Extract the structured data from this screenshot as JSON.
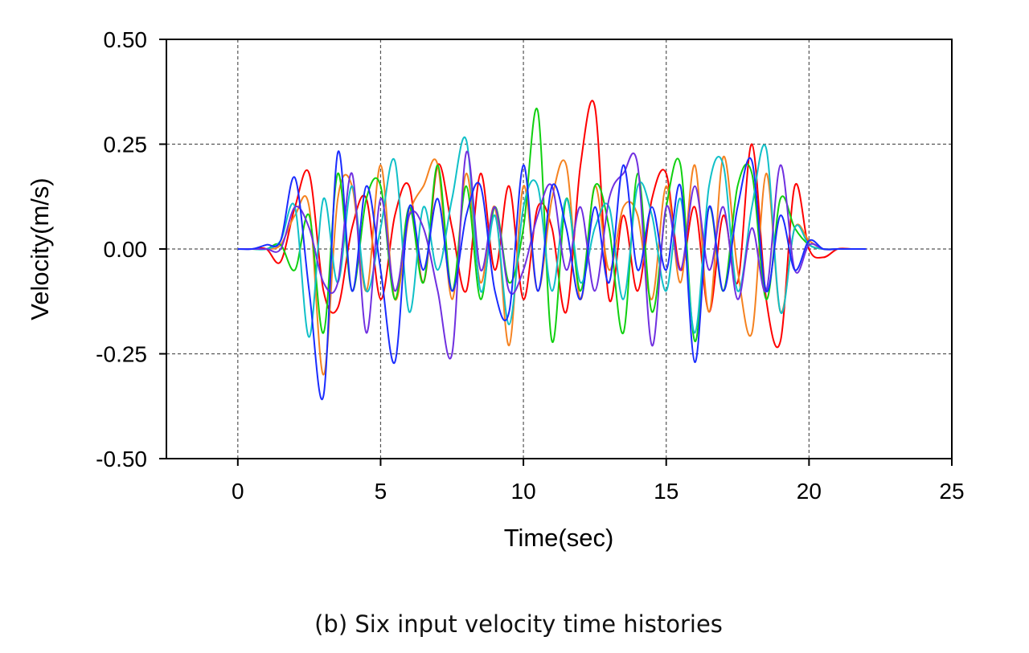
{
  "chart_data": {
    "type": "line",
    "title": "",
    "xlabel": "Time(sec)",
    "ylabel": "Velocity(m/s)",
    "xlim": [
      -2.5,
      25
    ],
    "ylim": [
      -0.5,
      0.5
    ],
    "xticks": [
      0,
      5,
      10,
      15,
      20,
      25
    ],
    "xtick_labels": [
      "0",
      "5",
      "10",
      "15",
      "20",
      "25"
    ],
    "yticks": [
      0.5,
      0.25,
      0,
      -0.25,
      -0.5
    ],
    "ytick_labels": [
      "0.50",
      "0.25",
      "0.00",
      "-0.25",
      "-0.50"
    ],
    "grid": true,
    "legend": "none",
    "x_step": 0.5,
    "x_start": 0,
    "series": [
      {
        "name": "red",
        "color": "#ff0000",
        "values": [
          0,
          0,
          0,
          -0.03,
          0.1,
          0.18,
          -0.1,
          -0.14,
          0.05,
          0.12,
          -0.12,
          0.08,
          0.15,
          -0.08,
          0.2,
          0.05,
          -0.1,
          0.18,
          -0.05,
          0.15,
          -0.12,
          0.1,
          0.05,
          -0.15,
          0.2,
          0.34,
          -0.12,
          0.08,
          -0.1,
          0.12,
          0.18,
          -0.05,
          0.1,
          -0.15,
          0.08,
          -0.08,
          0.25,
          -0.12,
          -0.22,
          0.15,
          0.0,
          -0.02,
          0,
          0,
          0
        ]
      },
      {
        "name": "orange",
        "color": "#f58220",
        "values": [
          0,
          0,
          0,
          0.01,
          0.08,
          0.1,
          -0.3,
          0.12,
          0.15,
          -0.1,
          0.2,
          -0.12,
          0.08,
          0.15,
          0.2,
          -0.12,
          0.18,
          -0.08,
          0.1,
          -0.23,
          0.15,
          -0.1,
          0.12,
          0.2,
          -0.12,
          0.15,
          -0.05,
          0.1,
          0.08,
          -0.12,
          0.15,
          -0.08,
          0.2,
          -0.15,
          0.22,
          -0.05,
          -0.2,
          0.18,
          -0.15,
          0.05,
          0.02,
          0,
          0,
          0,
          0
        ]
      },
      {
        "name": "green",
        "color": "#10d010",
        "values": [
          0,
          0,
          0,
          0.01,
          -0.05,
          0.08,
          -0.2,
          0.18,
          -0.1,
          0.12,
          0.15,
          -0.12,
          0.1,
          -0.08,
          0.2,
          -0.1,
          0.15,
          -0.12,
          0.1,
          -0.08,
          0.05,
          0.33,
          -0.22,
          0.12,
          -0.1,
          0.15,
          0.05,
          -0.2,
          0.18,
          -0.15,
          0.1,
          0.2,
          -0.22,
          0.1,
          -0.1,
          0.15,
          0.18,
          -0.12,
          0.12,
          0.05,
          0.01,
          0,
          0,
          0,
          0
        ]
      },
      {
        "name": "cyan",
        "color": "#10c0c8",
        "values": [
          0,
          0,
          0,
          0.02,
          0.1,
          -0.21,
          0.12,
          -0.08,
          0.15,
          -0.1,
          0.05,
          0.21,
          -0.15,
          0.1,
          -0.05,
          0.12,
          0.26,
          -0.1,
          0.08,
          -0.18,
          0.1,
          0.15,
          -0.1,
          0.12,
          -0.08,
          0.05,
          0.1,
          -0.12,
          0.15,
          0.08,
          -0.1,
          0.12,
          -0.2,
          0.15,
          0.2,
          -0.1,
          0.1,
          0.24,
          -0.15,
          0.05,
          0.01,
          0,
          0,
          0,
          0
        ]
      },
      {
        "name": "purple",
        "color": "#7030e0",
        "values": [
          0,
          0,
          0,
          0,
          0.1,
          0.05,
          -0.08,
          -0.08,
          0.18,
          -0.2,
          0.12,
          -0.1,
          0.08,
          0.05,
          -0.1,
          -0.25,
          0.23,
          -0.05,
          0.1,
          -0.1,
          -0.05,
          0.08,
          0.15,
          -0.05,
          0.1,
          -0.1,
          0.12,
          0.18,
          0.2,
          -0.23,
          0.1,
          -0.05,
          0.15,
          -0.05,
          0.1,
          -0.12,
          0.05,
          -0.1,
          0.2,
          -0.05,
          0.01,
          0,
          0,
          0,
          0
        ]
      },
      {
        "name": "blue",
        "color": "#1a2cff",
        "values": [
          0,
          0,
          0.01,
          0.02,
          0.17,
          -0.1,
          -0.35,
          0.23,
          -0.1,
          0.15,
          -0.05,
          -0.27,
          0.1,
          -0.05,
          0.12,
          -0.1,
          0.08,
          0.15,
          -0.1,
          -0.15,
          0.2,
          -0.1,
          0.15,
          0.05,
          -0.12,
          0.1,
          -0.08,
          0.2,
          -0.05,
          0.1,
          -0.05,
          0.15,
          -0.27,
          0.1,
          -0.1,
          0.1,
          0.21,
          -0.1,
          0.08,
          -0.05,
          0.02,
          0,
          0,
          0,
          0
        ]
      }
    ]
  },
  "caption": "(b) Six input velocity time histories"
}
